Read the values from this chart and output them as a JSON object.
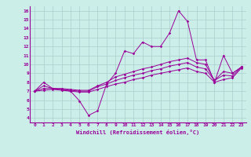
{
  "xlabel": "Windchill (Refroidissement éolien,°C)",
  "bg_color": "#cceee8",
  "line_color": "#990099",
  "grid_color": "#aacccc",
  "xlim": [
    -0.5,
    23.5
  ],
  "ylim": [
    3.5,
    16.5
  ],
  "xticks": [
    0,
    1,
    2,
    3,
    4,
    5,
    6,
    7,
    8,
    9,
    10,
    11,
    12,
    13,
    14,
    15,
    16,
    17,
    18,
    19,
    20,
    21,
    22,
    23
  ],
  "yticks": [
    4,
    5,
    6,
    7,
    8,
    9,
    10,
    11,
    12,
    13,
    14,
    15,
    16
  ],
  "series": [
    [
      7.0,
      8.0,
      7.3,
      7.2,
      7.0,
      5.9,
      4.3,
      4.8,
      7.8,
      9.0,
      11.5,
      11.2,
      12.5,
      12.0,
      12.0,
      13.5,
      16.0,
      14.8,
      10.5,
      10.5,
      8.0,
      11.0,
      9.0,
      9.7
    ],
    [
      7.0,
      7.6,
      7.3,
      7.3,
      7.2,
      7.1,
      7.1,
      7.6,
      8.0,
      8.6,
      8.9,
      9.2,
      9.5,
      9.7,
      10.0,
      10.3,
      10.5,
      10.7,
      10.2,
      10.0,
      8.2,
      9.2,
      9.0,
      9.7
    ],
    [
      7.0,
      7.3,
      7.3,
      7.2,
      7.1,
      7.0,
      7.0,
      7.5,
      7.8,
      8.2,
      8.5,
      8.8,
      9.0,
      9.3,
      9.5,
      9.8,
      10.0,
      10.2,
      9.7,
      9.5,
      8.2,
      8.8,
      8.7,
      9.7
    ],
    [
      7.0,
      7.1,
      7.2,
      7.1,
      7.0,
      6.9,
      6.9,
      7.2,
      7.5,
      7.8,
      8.0,
      8.3,
      8.5,
      8.8,
      9.0,
      9.2,
      9.4,
      9.6,
      9.2,
      9.0,
      8.0,
      8.3,
      8.5,
      9.6
    ]
  ]
}
